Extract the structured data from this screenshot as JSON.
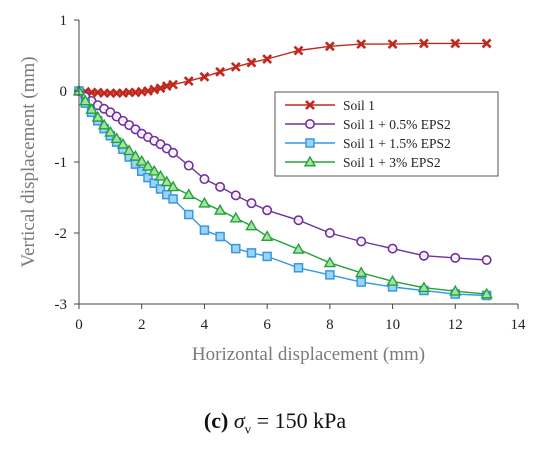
{
  "chart_data": {
    "type": "line",
    "title": "",
    "xlabel": "Horizontal displacement (mm)",
    "ylabel": "Vertical  displacement (mm)",
    "xlim": [
      0,
      14
    ],
    "ylim": [
      -3,
      1
    ],
    "xticks": [
      "0",
      "2",
      "4",
      "6",
      "8",
      "10",
      "12",
      "14"
    ],
    "yticks": [
      "1",
      "0",
      "-1",
      "-2",
      "-3"
    ],
    "grid": false,
    "legend_position": "right",
    "series": [
      {
        "name": "Soil 1",
        "color": "#c0281e",
        "marker": "x",
        "x": [
          0,
          0.2,
          0.4,
          0.6,
          0.8,
          1.0,
          1.2,
          1.4,
          1.6,
          1.8,
          2.0,
          2.2,
          2.4,
          2.6,
          2.8,
          3.0,
          3.5,
          4.0,
          4.5,
          5.0,
          5.5,
          6.0,
          7.0,
          8.0,
          9.0,
          10.0,
          11.0,
          12.0,
          13.0
        ],
        "y": [
          0,
          -0.01,
          -0.02,
          -0.02,
          -0.03,
          -0.03,
          -0.03,
          -0.03,
          -0.02,
          -0.02,
          -0.01,
          0.0,
          0.02,
          0.04,
          0.07,
          0.09,
          0.14,
          0.2,
          0.27,
          0.34,
          0.4,
          0.45,
          0.57,
          0.63,
          0.66,
          0.66,
          0.67,
          0.67,
          0.67
        ]
      },
      {
        "name": "Soil 1 + 0.5% EPS2",
        "color": "#7030a0",
        "marker": "circle",
        "x": [
          0,
          0.2,
          0.4,
          0.6,
          0.8,
          1.0,
          1.2,
          1.4,
          1.6,
          1.8,
          2.0,
          2.2,
          2.4,
          2.6,
          2.8,
          3.0,
          3.5,
          4.0,
          4.5,
          5.0,
          5.5,
          6.0,
          7.0,
          8.0,
          9.0,
          10.0,
          11.0,
          12.0,
          13.0
        ],
        "y": [
          0,
          -0.08,
          -0.14,
          -0.2,
          -0.25,
          -0.3,
          -0.36,
          -0.42,
          -0.48,
          -0.54,
          -0.6,
          -0.65,
          -0.7,
          -0.75,
          -0.81,
          -0.87,
          -1.05,
          -1.24,
          -1.35,
          -1.47,
          -1.58,
          -1.68,
          -1.82,
          -2.0,
          -2.12,
          -2.22,
          -2.32,
          -2.35,
          -2.38
        ]
      },
      {
        "name": "Soil 1 + 1.5% EPS2",
        "color": "#3399e6",
        "marker": "square",
        "x": [
          0,
          0.2,
          0.4,
          0.6,
          0.8,
          1.0,
          1.2,
          1.4,
          1.6,
          1.8,
          2.0,
          2.2,
          2.4,
          2.6,
          2.8,
          3.0,
          3.5,
          4.0,
          4.5,
          5.0,
          5.5,
          6.0,
          7.0,
          8.0,
          9.0,
          10.0,
          11.0,
          12.0,
          13.0
        ],
        "y": [
          0,
          -0.17,
          -0.3,
          -0.42,
          -0.53,
          -0.63,
          -0.72,
          -0.82,
          -0.93,
          -1.03,
          -1.13,
          -1.22,
          -1.3,
          -1.38,
          -1.46,
          -1.52,
          -1.74,
          -1.96,
          -2.05,
          -2.22,
          -2.28,
          -2.33,
          -2.49,
          -2.59,
          -2.69,
          -2.76,
          -2.81,
          -2.86,
          -2.88
        ]
      },
      {
        "name": "Soil 1 + 3% EPS2",
        "color": "#22a33a",
        "marker": "triangle",
        "x": [
          0,
          0.2,
          0.4,
          0.6,
          0.8,
          1.0,
          1.2,
          1.4,
          1.6,
          1.8,
          2.0,
          2.2,
          2.4,
          2.6,
          2.8,
          3.0,
          3.5,
          4.0,
          4.5,
          5.0,
          5.5,
          6.0,
          7.0,
          8.0,
          9.0,
          10.0,
          11.0,
          12.0,
          13.0
        ],
        "y": [
          0,
          -0.14,
          -0.26,
          -0.37,
          -0.48,
          -0.58,
          -0.67,
          -0.75,
          -0.84,
          -0.92,
          -0.99,
          -1.06,
          -1.13,
          -1.2,
          -1.28,
          -1.35,
          -1.46,
          -1.58,
          -1.68,
          -1.79,
          -1.9,
          -2.05,
          -2.23,
          -2.42,
          -2.56,
          -2.68,
          -2.77,
          -2.82,
          -2.86
        ]
      }
    ]
  },
  "caption": {
    "label": "(c)",
    "symbol": "σ",
    "subscript": "v",
    "value_text": " = 150 kPa"
  }
}
